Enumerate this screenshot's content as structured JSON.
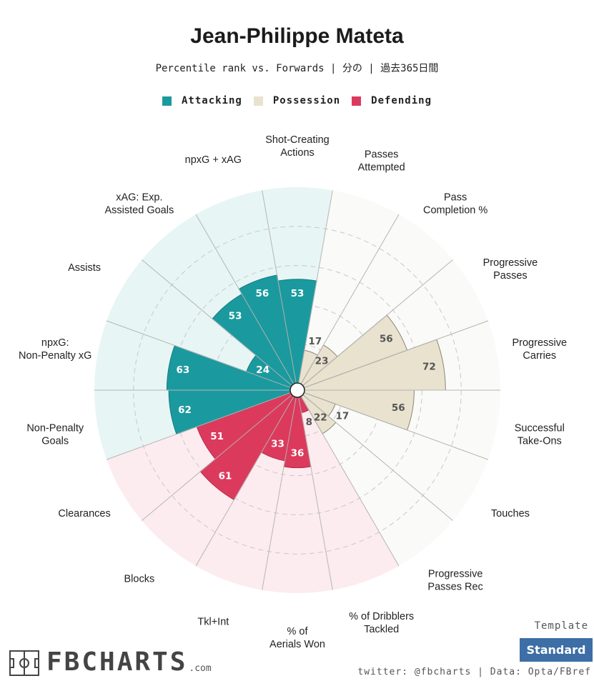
{
  "header": {
    "title": "Jean-Philippe Mateta",
    "subtitle": "Percentile rank vs. Forwards | 分の | 過去365日間"
  },
  "legend": [
    {
      "label": "Attacking",
      "color": "#1a9a9e"
    },
    {
      "label": "Possession",
      "color": "#e8e2cf"
    },
    {
      "label": "Defending",
      "color": "#dc3a5d"
    }
  ],
  "chart_data": {
    "type": "polar-bar",
    "ylim": [
      0,
      100
    ],
    "grid": true,
    "categories": [
      {
        "label": "Shot-Creating Actions",
        "value": 53,
        "group": "Attacking"
      },
      {
        "label": "Passes Attempted",
        "value": 17,
        "group": "Possession"
      },
      {
        "label": "Pass Completion %",
        "value": 23,
        "group": "Possession"
      },
      {
        "label": "Progressive Passes",
        "value": 56,
        "group": "Possession"
      },
      {
        "label": "Progressive Carries",
        "value": 72,
        "group": "Possession"
      },
      {
        "label": "Successful Take-Ons",
        "value": 56,
        "group": "Possession"
      },
      {
        "label": "Touches",
        "value": 17,
        "group": "Possession"
      },
      {
        "label": "Progressive Passes Rec",
        "value": 22,
        "group": "Possession"
      },
      {
        "label": "% of Dribblers Tackled",
        "value": 8,
        "group": "Defending"
      },
      {
        "label": "% of Aerials Won",
        "value": 36,
        "group": "Defending"
      },
      {
        "label": "Tkl+Int",
        "value": 33,
        "group": "Defending"
      },
      {
        "label": "Blocks",
        "value": 61,
        "group": "Defending"
      },
      {
        "label": "Clearances",
        "value": 51,
        "group": "Defending"
      },
      {
        "label": "Non-Penalty Goals",
        "value": 62,
        "group": "Attacking"
      },
      {
        "label": "npxG: Non-Penalty xG",
        "value": 63,
        "group": "Attacking"
      },
      {
        "label": "Assists",
        "value": 24,
        "group": "Attacking"
      },
      {
        "label": "xAG: Exp. Assisted Goals",
        "value": 53,
        "group": "Attacking"
      },
      {
        "label": "npxG + xAG",
        "value": 56,
        "group": "Attacking"
      }
    ],
    "group_colors": {
      "Attacking": {
        "fill": "#1a9a9e",
        "bg": "#e8f5f5"
      },
      "Possession": {
        "fill": "#e8e2cf",
        "bg": "#fafaf8"
      },
      "Defending": {
        "fill": "#dc3a5d",
        "bg": "#fcecef"
      }
    }
  },
  "footer": {
    "template_label": "Template",
    "template_button": "Standard",
    "credits": "twitter: @fbcharts | Data: Opta/FBref",
    "logo_text": "FBCHARTS",
    "logo_suffix": ".com"
  }
}
